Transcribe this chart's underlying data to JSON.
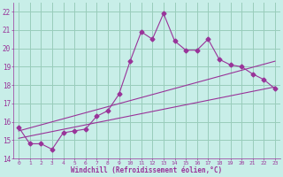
{
  "xlabel": "Windchill (Refroidissement éolien,°C)",
  "background_color": "#c8eee8",
  "grid_color": "#99ccbb",
  "line_color": "#993399",
  "xlim": [
    -0.5,
    23.5
  ],
  "ylim": [
    14,
    22.5
  ],
  "xticks": [
    0,
    1,
    2,
    3,
    4,
    5,
    6,
    7,
    8,
    9,
    10,
    11,
    12,
    13,
    14,
    15,
    16,
    17,
    18,
    19,
    20,
    21,
    22,
    23
  ],
  "yticks": [
    14,
    15,
    16,
    17,
    18,
    19,
    20,
    21,
    22
  ],
  "line1_x": [
    0,
    1,
    2,
    3,
    4,
    5,
    6,
    7,
    8,
    9,
    10,
    11,
    12,
    13,
    14,
    15,
    16,
    17,
    18,
    19,
    20,
    21,
    22,
    23
  ],
  "line1_y": [
    15.7,
    14.8,
    14.8,
    14.5,
    15.4,
    15.5,
    15.6,
    16.3,
    16.6,
    17.5,
    19.3,
    20.9,
    20.5,
    21.9,
    20.4,
    19.9,
    19.9,
    20.5,
    19.4,
    19.1,
    19.0,
    18.6,
    18.3,
    17.8
  ],
  "line2_x": [
    0,
    23
  ],
  "line2_y": [
    15.1,
    17.9
  ],
  "line3_x": [
    0,
    23
  ],
  "line3_y": [
    15.5,
    19.3
  ],
  "marker": "D",
  "marker_size": 2.5,
  "line_width": 0.8
}
